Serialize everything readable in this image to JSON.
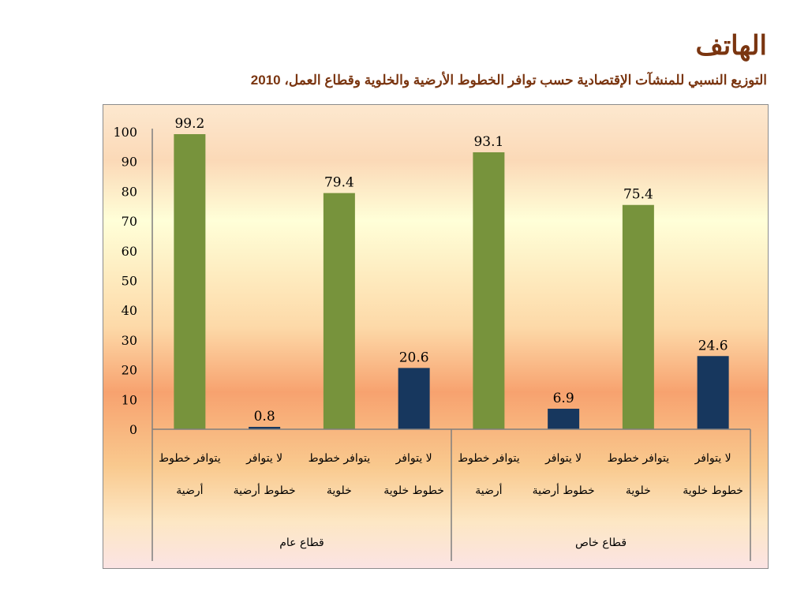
{
  "header": {
    "title": "الهاتف",
    "subtitle": "التوزيع النسبي للمنشآت الإقتصادية حسب توافر الخطوط الأرضية والخلوية وقطاع العمل، 2010"
  },
  "colors": {
    "available": "#77933c",
    "not_available": "#17375e",
    "title": "#7a3510"
  },
  "chart_data": {
    "type": "bar",
    "title": "",
    "xlabel": "",
    "ylabel": "",
    "ylim": [
      0,
      100
    ],
    "y_ticks": [
      0,
      10,
      20,
      30,
      40,
      50,
      60,
      70,
      80,
      90,
      100
    ],
    "grid": false,
    "legend": "none",
    "groups": [
      {
        "label": "قطاع عام",
        "bars": [
          {
            "label_lines": [
              "يتوافر خطوط",
              "أرضية"
            ],
            "value": 99.2,
            "value_label": "99.2",
            "kind": "available"
          },
          {
            "label_lines": [
              "لا يتوافر",
              "خطوط أرضية"
            ],
            "value": 0.8,
            "value_label": "0.8",
            "kind": "not_available"
          },
          {
            "label_lines": [
              "يتوافر خطوط",
              "خلوية"
            ],
            "value": 79.4,
            "value_label": "79.4",
            "kind": "available"
          },
          {
            "label_lines": [
              "لا يتوافر",
              "خطوط خلوية"
            ],
            "value": 20.6,
            "value_label": "20.6",
            "kind": "not_available"
          }
        ]
      },
      {
        "label": "قطاع خاص",
        "bars": [
          {
            "label_lines": [
              "يتوافر خطوط",
              "أرضية"
            ],
            "value": 93.1,
            "value_label": "93.1",
            "kind": "available"
          },
          {
            "label_lines": [
              "لا يتوافر",
              "خطوط أرضية"
            ],
            "value": 6.9,
            "value_label": "6.9",
            "kind": "not_available"
          },
          {
            "label_lines": [
              "يتوافر خطوط",
              "خلوية"
            ],
            "value": 75.4,
            "value_label": "75.4",
            "kind": "available"
          },
          {
            "label_lines": [
              "لا يتوافر",
              "خطوط خلوية"
            ],
            "value": 24.6,
            "value_label": "24.6",
            "kind": "not_available"
          }
        ]
      }
    ]
  }
}
